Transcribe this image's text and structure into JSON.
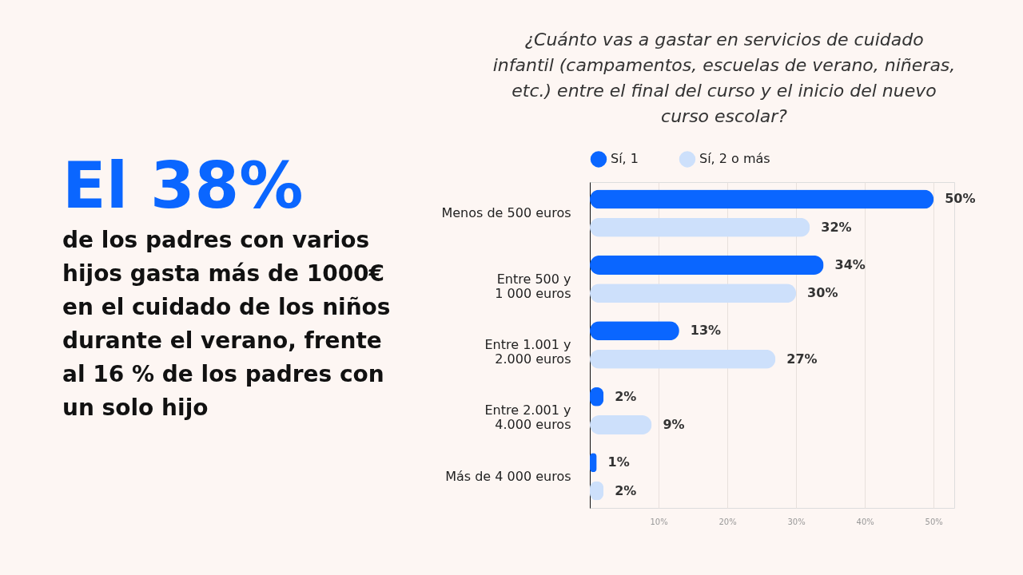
{
  "chart_data": {
    "type": "bar",
    "orientation": "horizontal",
    "title": "¿Cuánto vas a gastar en servicios de cuidado infantil (campamentos, escuelas de verano, niñeras, etc.) entre el final del curso y el inicio del nuevo curso escolar?",
    "categories": [
      "Menos de 500  euros",
      "Entre 500 y \n1 000 euros",
      "Entre 1.001 y\n2.000 euros",
      "Entre 2.001 y\n4.000 euros",
      "Más de 4 000 euros"
    ],
    "series": [
      {
        "name": "Sí, 1",
        "color": "#0a66ff",
        "values": [
          50,
          34,
          13,
          2,
          1
        ],
        "value_labels": [
          "50%",
          "34%",
          "13%",
          "2%",
          "1%"
        ]
      },
      {
        "name": "Sí, 2 o más",
        "color": "#cde0fb",
        "values": [
          32,
          30,
          27,
          9,
          2
        ],
        "value_labels": [
          "32%",
          "30%",
          "27%",
          "9%",
          "2%"
        ]
      }
    ],
    "xlim": [
      0,
      53
    ],
    "xticks": [
      {
        "value": 10,
        "label": "10%"
      },
      {
        "value": 20,
        "label": "20%"
      },
      {
        "value": 30,
        "label": "30%"
      },
      {
        "value": 40,
        "label": "40%"
      },
      {
        "value": 50,
        "label": "50%"
      }
    ],
    "grid": "x",
    "legend": "top",
    "annotations": [
      "El 38%",
      "de los padres con varios hijos gasta más de 1000€ en el cuidado de los niños durante el verano, frente al 16 % de los padres con un solo hijo"
    ]
  }
}
